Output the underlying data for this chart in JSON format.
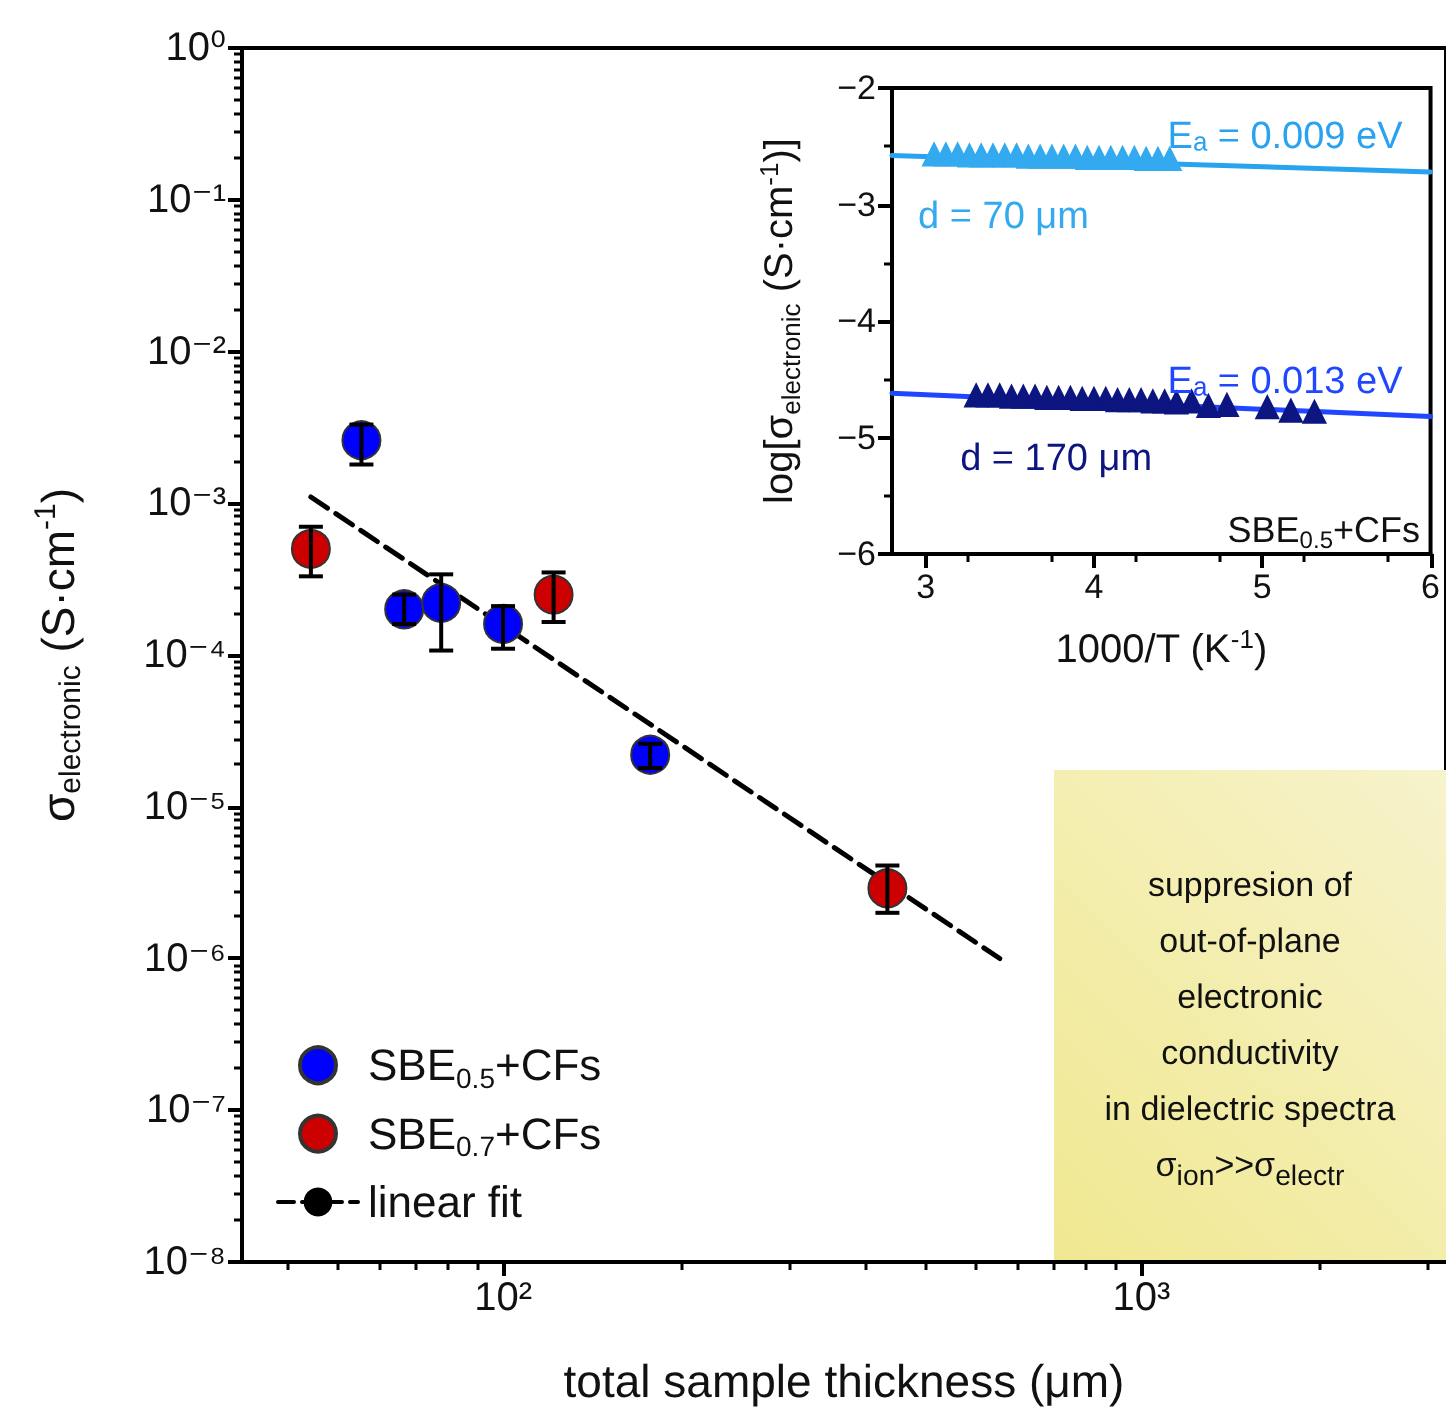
{
  "chart_data": [
    {
      "type": "scatter",
      "xlabel": "total sample thickness (μm)",
      "ylabel": "σ$_{electronic}$ (S·cm$^{-1}$)",
      "log": "xy",
      "xlim": [
        39,
        3000
      ],
      "ylim": [
        1e-08,
        1
      ],
      "xticks": [
        {
          "value": 100,
          "label": "10²"
        },
        {
          "value": 1000,
          "label": "10³"
        }
      ],
      "yticks": [
        {
          "value": 1e-08,
          "label": "10⁻⁸"
        },
        {
          "value": 1e-07,
          "label": "10⁻⁷"
        },
        {
          "value": 1e-06,
          "label": "10⁻⁶"
        },
        {
          "value": 1e-05,
          "label": "10⁻⁵"
        },
        {
          "value": 0.0001,
          "label": "10⁻⁴"
        },
        {
          "value": 0.001,
          "label": "10⁻³"
        },
        {
          "value": 0.01,
          "label": "10⁻²"
        },
        {
          "value": 0.1,
          "label": "10⁻¹"
        },
        {
          "value": 1,
          "label": "10⁰"
        }
      ],
      "grid": false,
      "legend": "bottom left",
      "marker": "circle",
      "annotations": [
        "suppresion of\nout-of-plane\nelectronic\nconductivity\nin dielectric spectra\nσ$_{ion}$>>σ$_{electr}$"
      ],
      "series": [
        {
          "name": "SBE$_{0.5}$+CFs",
          "color": "#0000ff",
          "x": [
            60,
            70,
            80,
            100,
            170
          ],
          "values": [
            0.0026,
            0.0002,
            0.00022,
            0.00016,
            2.2e-05
          ],
          "errors": [
            [
              0.0018,
              0.0033
            ],
            [
              0.00016,
              0.00025
            ],
            [
              0.000107,
              0.00034
            ],
            [
              0.00011,
              0.00021
            ],
            [
              1.8e-05,
              2.6e-05
            ]
          ]
        },
        {
          "name": "SBE$_{0.7}$+CFs",
          "color": "#cc0000",
          "x": [
            50,
            120,
            400
          ],
          "values": [
            0.0005,
            0.00025,
            2.9e-06
          ],
          "errors": [
            [
              0.00033,
              0.0007
            ],
            [
              0.000165,
              0.00035
            ],
            [
              2e-06,
              4.1e-06
            ]
          ]
        },
        {
          "name": "linear fit",
          "type": "line",
          "color": "#000000",
          "line_style": "dashed",
          "marker": "none",
          "x": [
            50,
            600
          ],
          "values": [
            0.0011,
            1e-06
          ]
        }
      ]
    },
    {
      "type": "scatter",
      "xlabel": "1000/T (K$^{-1}$)",
      "ylabel": "log[σ$_{electronic}$ (S·cm$^{-1}$)]",
      "xlim": [
        2.8,
        6
      ],
      "ylim": [
        -6,
        -2
      ],
      "xticks": [
        3,
        4,
        5,
        6
      ],
      "yticks": [
        -6,
        -5,
        -4,
        -3,
        -2
      ],
      "grid": false,
      "legend": false,
      "marker": "triangle",
      "annotations": [
        "SBE$_{0.5}$+CFs"
      ],
      "series": [
        {
          "name": "d = 70 μm",
          "color": "#33aaf0",
          "x": [
            3.05,
            3.12,
            3.19,
            3.26,
            3.33,
            3.4,
            3.47,
            3.54,
            3.61,
            3.68,
            3.75,
            3.82,
            3.89,
            3.96,
            4.03,
            4.1,
            4.17,
            4.24,
            4.31,
            4.38,
            4.45
          ],
          "values": [
            -2.57,
            -2.57,
            -2.57,
            -2.58,
            -2.58,
            -2.58,
            -2.58,
            -2.58,
            -2.59,
            -2.59,
            -2.59,
            -2.59,
            -2.59,
            -2.6,
            -2.6,
            -2.6,
            -2.6,
            -2.6,
            -2.61,
            -2.61,
            -2.61
          ]
        },
        {
          "name": "d = 170 μm",
          "color": "#0c1580",
          "x": [
            3.3,
            3.37,
            3.44,
            3.51,
            3.58,
            3.65,
            3.72,
            3.79,
            3.86,
            3.93,
            4.0,
            4.07,
            4.14,
            4.21,
            4.28,
            4.35,
            4.42,
            4.49,
            4.58,
            4.68,
            4.79,
            5.03,
            5.17,
            5.31
          ],
          "values": [
            -4.64,
            -4.64,
            -4.64,
            -4.65,
            -4.65,
            -4.65,
            -4.66,
            -4.66,
            -4.66,
            -4.67,
            -4.67,
            -4.67,
            -4.68,
            -4.68,
            -4.68,
            -4.69,
            -4.69,
            -4.7,
            -4.69,
            -4.73,
            -4.72,
            -4.74,
            -4.77,
            -4.78
          ]
        },
        {
          "name": "Eₐ = 0.009 eV",
          "type": "line",
          "color": "#29a3f0",
          "marker": "none",
          "x": [
            2.8,
            6
          ],
          "values": [
            -2.58,
            -2.72
          ]
        },
        {
          "name": "Eₐ = 0.013 eV",
          "type": "line",
          "color": "#2046ff",
          "marker": "none",
          "x": [
            2.8,
            6
          ],
          "values": [
            -4.62,
            -4.82
          ]
        }
      ]
    }
  ]
}
